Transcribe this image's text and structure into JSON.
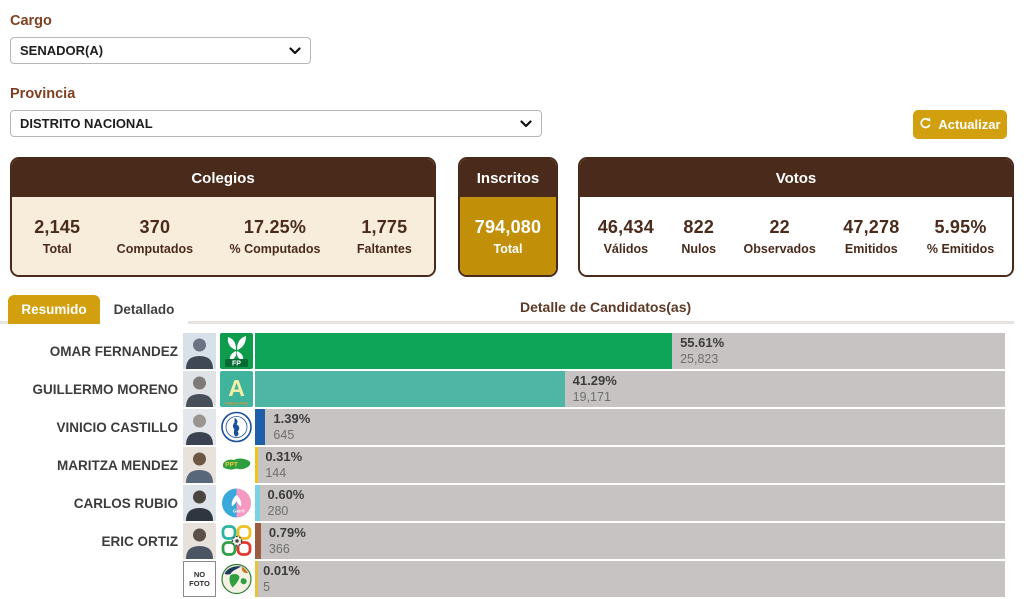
{
  "accent_colors": {
    "gold": "#D2A00E",
    "dark_brown": "#4A2B1B",
    "label_brown": "#7E4020",
    "cream": "#F7EDDA",
    "inscritos_gold": "#C29008",
    "track_gray": "#C8C3C3"
  },
  "filters": {
    "cargo_label": "Cargo",
    "cargo_value": "SENADOR(A)",
    "provincia_label": "Provincia",
    "provincia_value": "DISTRITO NACIONAL",
    "refresh_label": "Actualizar"
  },
  "panels": {
    "colegios": {
      "title": "Colegios",
      "stats": [
        {
          "value": "2,145",
          "label": "Total"
        },
        {
          "value": "370",
          "label": "Computados"
        },
        {
          "value": "17.25%",
          "label": "% Computados"
        },
        {
          "value": "1,775",
          "label": "Faltantes"
        }
      ]
    },
    "inscritos": {
      "title": "Inscritos",
      "value": "794,080",
      "label": "Total"
    },
    "votos": {
      "title": "Votos",
      "stats": [
        {
          "value": "46,434",
          "label": "Válidos"
        },
        {
          "value": "822",
          "label": "Nulos"
        },
        {
          "value": "22",
          "label": "Observados"
        },
        {
          "value": "47,278",
          "label": "Emitidos"
        },
        {
          "value": "5.95%",
          "label": "% Emitidos"
        }
      ]
    }
  },
  "tabs": {
    "resumido": "Resumido",
    "detallado": "Detallado"
  },
  "section_title": "Detalle de Candidatos(as)",
  "candidates": [
    {
      "name": "OMAR FERNANDEZ",
      "party_label": "FP",
      "pct": "55.61%",
      "votes": "25,823",
      "pct_num": 55.61,
      "color": "#0FA558"
    },
    {
      "name": "GUILLERMO MORENO",
      "party_label": "A",
      "party_sub": "Alianza País",
      "pct": "41.29%",
      "votes": "19,171",
      "pct_num": 41.29,
      "color": "#4FB6A6"
    },
    {
      "name": "VINICIO CASTILLO",
      "pct": "1.39%",
      "votes": "645",
      "pct_num": 1.39,
      "color": "#1D5FA8"
    },
    {
      "name": "MARITZA MENDEZ",
      "party_label": "PPT",
      "pct": "0.31%",
      "votes": "144",
      "pct_num": 0.31,
      "color": "#EFC51C"
    },
    {
      "name": "CARLOS RUBIO",
      "party_label": "GenS",
      "pct": "0.60%",
      "votes": "280",
      "pct_num": 0.6,
      "color": "#7BD2E3"
    },
    {
      "name": "ERIC ORTIZ",
      "pct": "0.79%",
      "votes": "366",
      "pct_num": 0.79,
      "color": "#9C5B40"
    },
    {
      "name": "",
      "photo_label": "NO FOTO",
      "pct": "0.01%",
      "votes": "5",
      "pct_num": 0.01,
      "color": "#E5C33C"
    }
  ]
}
